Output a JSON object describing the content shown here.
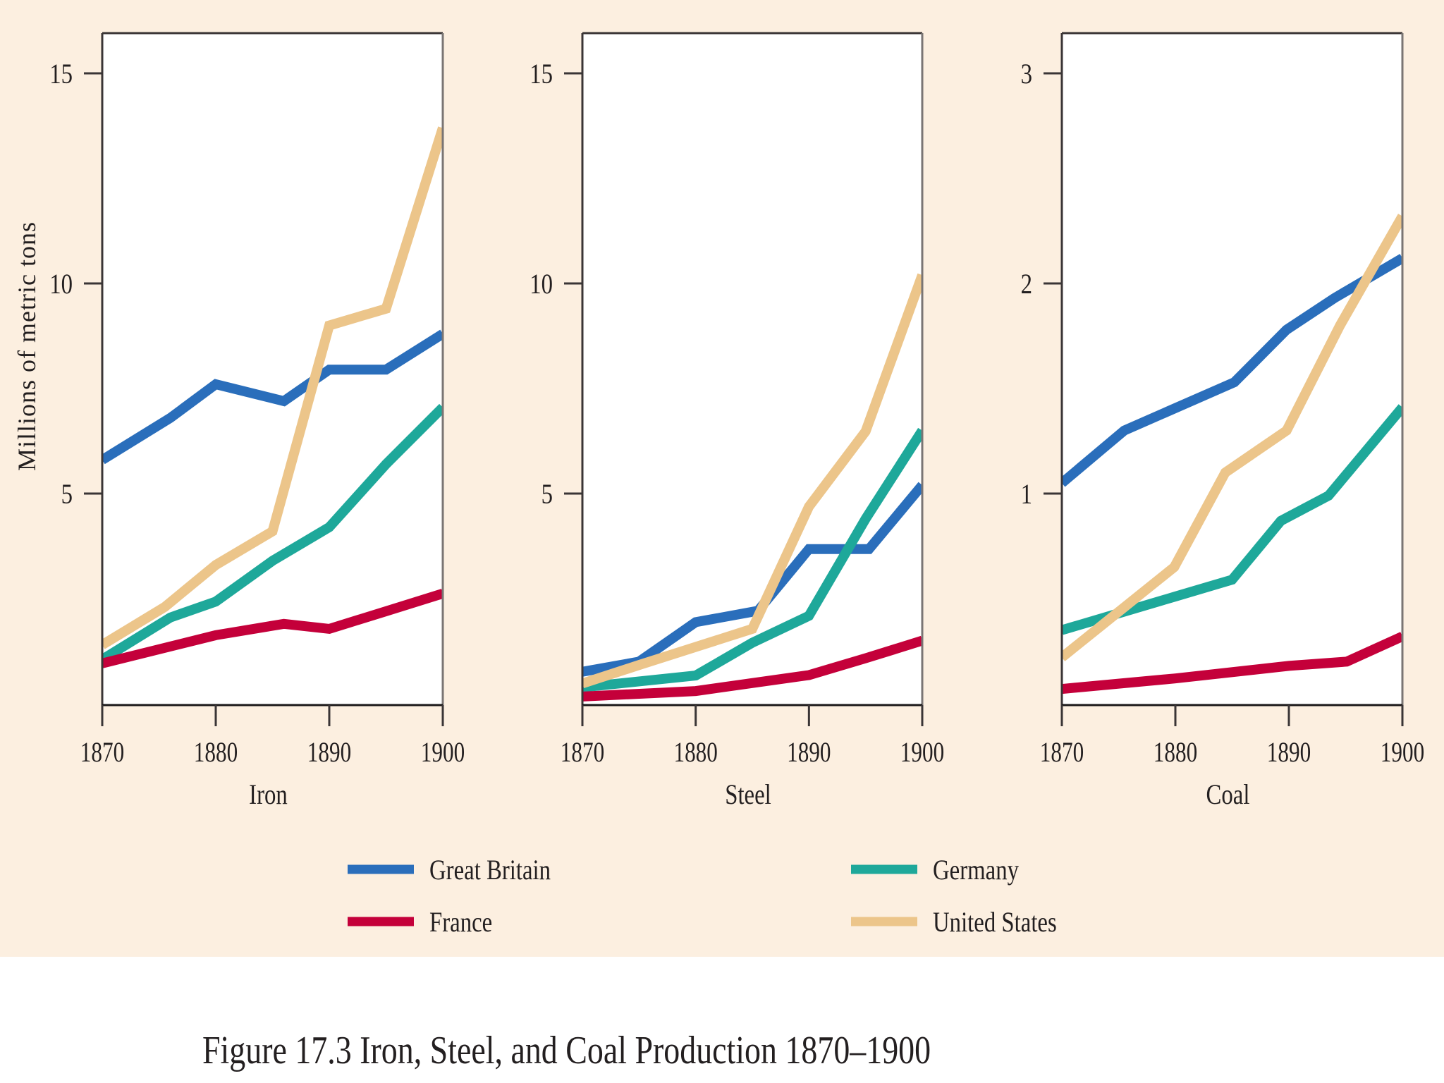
{
  "chart_data": {
    "type": "line",
    "title": "Figure 17.3  Iron, Steel, and Coal Production 1870–1900",
    "ylabel": "Millions of metric tons",
    "legend": {
      "placement": "bottom",
      "entries": [
        {
          "key": "gb",
          "label": "Great Britain",
          "color": "#2a6ebb"
        },
        {
          "key": "germany",
          "label": "Germany",
          "color": "#1ea89a"
        },
        {
          "key": "france",
          "label": "France",
          "color": "#c4003a"
        },
        {
          "key": "us",
          "label": "United States",
          "color": "#ecc58a"
        }
      ]
    },
    "panels": [
      {
        "name": "iron",
        "xlabel": "Iron",
        "xlim": [
          1870,
          1900
        ],
        "xticks": [
          1870,
          1880,
          1890,
          1900
        ],
        "ylim": [
          0,
          16
        ],
        "yticks": [
          5,
          10,
          15
        ],
        "series": [
          {
            "key": "gb",
            "name": "Great Britain",
            "x": [
              1870,
              1876,
              1880,
              1886,
              1890,
              1895,
              1900
            ],
            "y": [
              5.8,
              6.8,
              7.6,
              7.2,
              7.95,
              7.95,
              8.8
            ]
          },
          {
            "key": "france",
            "name": "France",
            "x": [
              1870,
              1880,
              1886,
              1890,
              1895,
              1900
            ],
            "y": [
              0.96,
              1.63,
              1.9,
              1.78,
              2.2,
              2.62
            ]
          },
          {
            "key": "germany",
            "name": "Germany",
            "x": [
              1870,
              1876,
              1880,
              1885,
              1890,
              1895,
              1900
            ],
            "y": [
              1.05,
              2.05,
              2.43,
              3.4,
              4.2,
              5.7,
              7.05
            ]
          },
          {
            "key": "us",
            "name": "United States",
            "x": [
              1870,
              1875.5,
              1880,
              1885,
              1890,
              1895,
              1900
            ],
            "y": [
              1.4,
              2.3,
              3.3,
              4.1,
              9.0,
              9.4,
              13.7
            ]
          }
        ]
      },
      {
        "name": "steel",
        "xlabel": "Steel",
        "xlim": [
          1870,
          1900
        ],
        "xticks": [
          1870,
          1880,
          1890,
          1900
        ],
        "ylim": [
          0,
          16
        ],
        "yticks": [
          5,
          10,
          15
        ],
        "series": [
          {
            "key": "gb",
            "name": "Great Britain",
            "x": [
              1870,
              1875,
              1880,
              1885.5,
              1890,
              1895.3,
              1900
            ],
            "y": [
              0.76,
              1.0,
              1.94,
              2.21,
              3.68,
              3.68,
              5.2
            ]
          },
          {
            "key": "france",
            "name": "France",
            "x": [
              1870,
              1880,
              1890,
              1895,
              1900
            ],
            "y": [
              0.17,
              0.3,
              0.68,
              1.08,
              1.5
            ]
          },
          {
            "key": "germany",
            "name": "Germany",
            "x": [
              1870,
              1880,
              1885,
              1890,
              1895,
              1900
            ],
            "y": [
              0.39,
              0.67,
              1.45,
              2.09,
              4.4,
              6.5
            ]
          },
          {
            "key": "us",
            "name": "United States",
            "x": [
              1870,
              1875,
              1885,
              1890,
              1895,
              1900
            ],
            "y": [
              0.48,
              0.92,
              1.78,
              4.69,
              6.48,
              10.2
            ]
          }
        ]
      },
      {
        "name": "coal",
        "xlabel": "Coal",
        "xlim": [
          1870,
          1900
        ],
        "xticks": [
          1870,
          1880,
          1890,
          1900
        ],
        "ylim": [
          0,
          3.2
        ],
        "yticks": [
          1,
          2,
          3
        ],
        "series": [
          {
            "key": "gb",
            "name": "Great Britain",
            "x": [
              1870,
              1875.5,
              1885.2,
              1889.8,
              1894,
              1900
            ],
            "y": [
              1.05,
              1.3,
              1.53,
              1.78,
              1.93,
              2.12
            ]
          },
          {
            "key": "france",
            "name": "France",
            "x": [
              1870,
              1880,
              1890,
              1895.1,
              1900
            ],
            "y": [
              0.07,
              0.12,
              0.18,
              0.2,
              0.32
            ]
          },
          {
            "key": "germany",
            "name": "Germany",
            "x": [
              1870,
              1880,
              1885,
              1889.3,
              1893.5,
              1900
            ],
            "y": [
              0.35,
              0.51,
              0.59,
              0.87,
              0.99,
              1.41
            ]
          },
          {
            "key": "us",
            "name": "United States",
            "x": [
              1870,
              1879.9,
              1884.4,
              1889.8,
              1894.5,
              1900
            ],
            "y": [
              0.22,
              0.65,
              1.1,
              1.3,
              1.8,
              2.32
            ]
          }
        ]
      }
    ]
  },
  "caption": "Figure 17.3  Iron, Steel, and Coal Production 1870–1900"
}
